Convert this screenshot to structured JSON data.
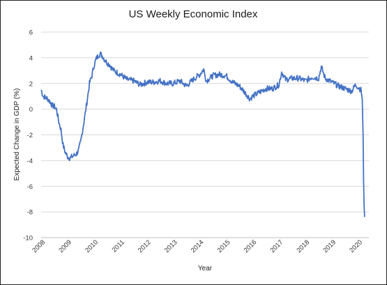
{
  "chart_data": {
    "type": "line",
    "title": "US Weekly Economic Index",
    "xlabel": "Year",
    "ylabel": "Expected Change in GDP (%)",
    "ylim": [
      -10,
      6
    ],
    "xlim": [
      2008,
      2020.4
    ],
    "y_ticks": [
      "6",
      "4",
      "2",
      "0",
      "-2",
      "-4",
      "-6",
      "-8",
      "-10"
    ],
    "x_ticks": [
      "2008",
      "2009",
      "2010",
      "2011",
      "2012",
      "2013",
      "2014",
      "2015",
      "2016",
      "2017",
      "2018",
      "2019",
      "2020"
    ],
    "grid": true,
    "legend": "none",
    "line_color": "#4472C4",
    "series": [
      {
        "x": [
          2008.0,
          2008.08,
          2008.17,
          2008.25,
          2008.33,
          2008.42,
          2008.5,
          2008.58,
          2008.67,
          2008.75,
          2008.83,
          2008.92,
          2009.0,
          2009.08,
          2009.17,
          2009.25,
          2009.33,
          2009.42,
          2009.5,
          2009.58,
          2009.67,
          2009.75,
          2009.83,
          2009.92,
          2010.0,
          2010.08,
          2010.17,
          2010.25,
          2010.33,
          2010.42,
          2010.5,
          2010.58,
          2010.67,
          2010.75,
          2010.83,
          2010.92,
          2011.0,
          2011.25,
          2011.5,
          2011.75,
          2012.0,
          2012.25,
          2012.5,
          2012.75,
          2013.0,
          2013.25,
          2013.5,
          2013.75,
          2014.0,
          2014.15,
          2014.25,
          2014.5,
          2014.75,
          2015.0,
          2015.25,
          2015.5,
          2015.75,
          2015.9,
          2016.0,
          2016.25,
          2016.5,
          2016.75,
          2017.0,
          2017.1,
          2017.25,
          2017.5,
          2017.75,
          2018.0,
          2018.25,
          2018.5,
          2018.6,
          2018.75,
          2019.0,
          2019.25,
          2019.5,
          2019.75,
          2019.9,
          2020.0,
          2020.1,
          2020.15,
          2020.18,
          2020.2,
          2020.22,
          2020.24
        ],
        "values": [
          1.5,
          1.0,
          0.9,
          0.8,
          0.6,
          0.3,
          0.2,
          0.0,
          -1.0,
          -1.6,
          -2.8,
          -3.4,
          -3.7,
          -3.8,
          -3.7,
          -3.6,
          -3.5,
          -3.2,
          -2.5,
          -1.5,
          -0.3,
          0.8,
          2.0,
          2.6,
          3.4,
          3.9,
          4.2,
          4.3,
          4.1,
          3.8,
          3.6,
          3.5,
          3.2,
          3.0,
          2.9,
          2.8,
          2.7,
          2.3,
          2.2,
          1.9,
          2.1,
          2.1,
          2.2,
          2.0,
          2.0,
          2.2,
          1.8,
          2.3,
          2.7,
          3.1,
          2.2,
          2.6,
          2.7,
          2.6,
          2.1,
          1.8,
          1.2,
          0.8,
          1.0,
          1.3,
          1.6,
          1.6,
          1.9,
          2.9,
          2.3,
          2.4,
          2.4,
          2.2,
          2.5,
          2.4,
          3.3,
          2.4,
          2.1,
          1.8,
          1.6,
          1.4,
          1.9,
          1.7,
          1.5,
          0.8,
          -2.0,
          -5.5,
          -7.6,
          -8.4
        ]
      }
    ]
  }
}
